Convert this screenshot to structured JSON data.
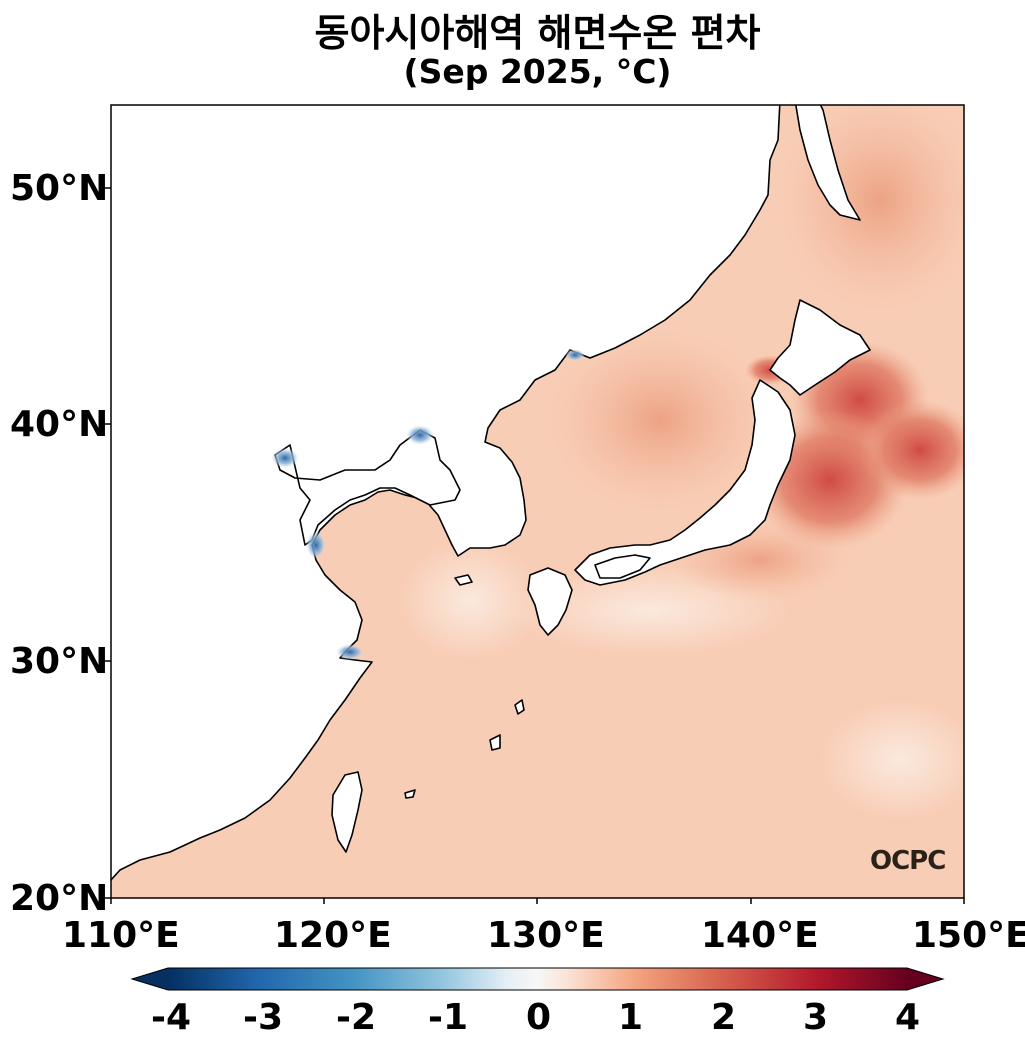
{
  "title": "동아시아해역 해면수온 편차",
  "subtitle": "(Sep 2025, °C)",
  "logo_text": "OCPC",
  "map": {
    "lon_range": [
      110,
      150
    ],
    "lat_range": [
      20,
      53.5
    ],
    "lat_ticks": [
      "20°N",
      "30°N",
      "40°N",
      "50°N"
    ],
    "lon_ticks": [
      "110°E",
      "120°E",
      "130°E",
      "140°E",
      "150°E"
    ]
  },
  "colorbar": {
    "range": [
      -4,
      4
    ],
    "ticks": [
      "-4",
      "-3",
      "-2",
      "-1",
      "0",
      "1",
      "2",
      "3",
      "4"
    ],
    "colormap": "RdBu_r",
    "extend": "both"
  },
  "colors": {
    "land": "#ffffff",
    "coast": "#000000",
    "typical_anomaly": "#f8cbb2",
    "strong_warm": "#d5534a",
    "cold_coastal": "#3a6fb0"
  }
}
